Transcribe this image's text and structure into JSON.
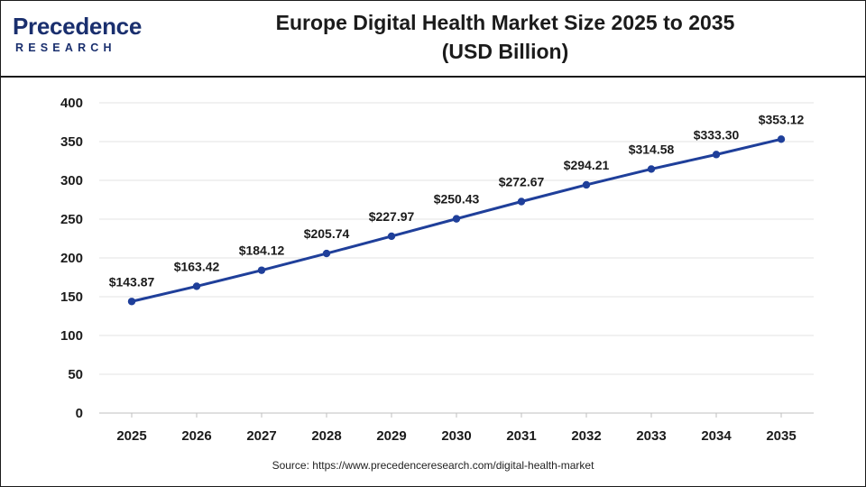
{
  "logo": {
    "main": "Precedence",
    "sub": "RESEARCH",
    "color": "#1a2f6e",
    "accent": "#e8532b"
  },
  "title": {
    "line1": "Europe Digital Health Market Size 2025 to 2035",
    "line2": "(USD Billion)"
  },
  "source": "Source: https://www.precedenceresearch.com/digital-health-market",
  "chart_data": {
    "type": "line",
    "title": "Europe Digital Health Market Size 2025 to 2035 (USD Billion)",
    "x": [
      "2025",
      "2026",
      "2027",
      "2028",
      "2029",
      "2030",
      "2031",
      "2032",
      "2033",
      "2034",
      "2035"
    ],
    "series": [
      {
        "values": [
          143.87,
          163.42,
          184.12,
          205.74,
          227.97,
          250.43,
          272.67,
          294.21,
          314.58,
          333.3,
          353.12
        ],
        "labels": [
          "$143.87",
          "$163.42",
          "$184.12",
          "$205.74",
          "$227.97",
          "$250.43",
          "$272.67",
          "$294.21",
          "$314.58",
          "$333.30",
          "$353.12"
        ],
        "color": "#1f3f9a"
      }
    ],
    "yticks": [
      "0",
      "50",
      "100",
      "150",
      "200",
      "250",
      "300",
      "350",
      "400"
    ],
    "ylim": [
      0,
      400
    ],
    "grid": true,
    "xlabel": "",
    "ylabel": ""
  }
}
